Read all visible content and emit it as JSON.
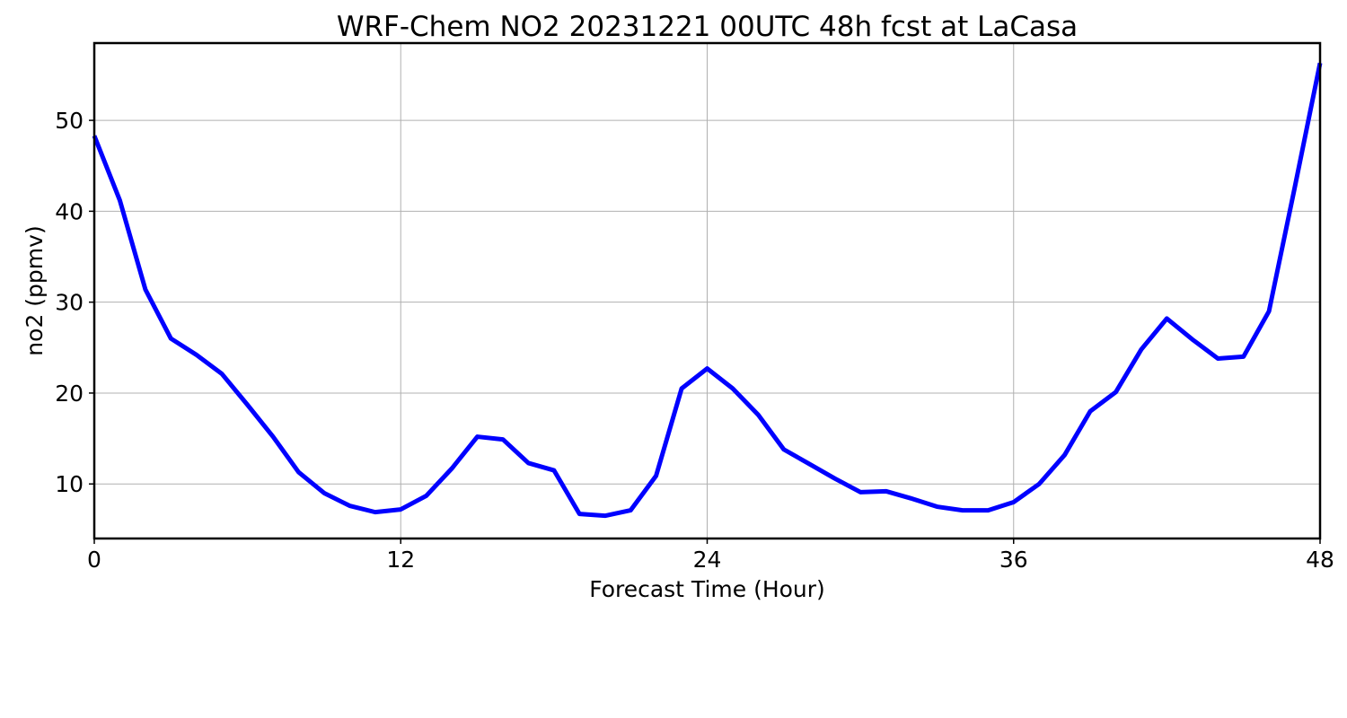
{
  "colors": {
    "line": "#0000ff",
    "grid": "#b0b0b0",
    "axes": "#000000",
    "background": "#ffffff"
  },
  "chart_data": {
    "type": "line",
    "title": "WRF-Chem NO2  20231221 00UTC 48h fcst at LaCasa",
    "xlabel": "Forecast Time (Hour)",
    "ylabel": "no2  (ppmv)",
    "xlim": [
      0,
      48
    ],
    "ylim": [
      4,
      58.5
    ],
    "xticks": [
      0,
      12,
      24,
      36,
      48
    ],
    "yticks": [
      10,
      20,
      30,
      40,
      50
    ],
    "grid": true,
    "series": [
      {
        "x": [
          0,
          1,
          2,
          3,
          4,
          5,
          6,
          7,
          8,
          9,
          10,
          11,
          12,
          13,
          14,
          15,
          16,
          17,
          18,
          19,
          20,
          21,
          22,
          23,
          24,
          25,
          26,
          27,
          28,
          29,
          30,
          31,
          32,
          33,
          34,
          35,
          36,
          37,
          38,
          39,
          40,
          41,
          42,
          43,
          44,
          45,
          46,
          47,
          48
        ],
        "values": [
          48.3,
          41.2,
          31.4,
          26.0,
          24.2,
          22.1,
          18.7,
          15.2,
          11.3,
          9.0,
          7.6,
          6.9,
          7.2,
          8.7,
          11.7,
          15.2,
          14.9,
          12.3,
          11.5,
          6.7,
          6.5,
          7.1,
          10.9,
          20.5,
          22.7,
          20.5,
          17.6,
          13.8,
          12.2,
          10.6,
          9.1,
          9.2,
          8.4,
          7.5,
          7.1,
          7.1,
          8.0,
          10.0,
          13.2,
          18.0,
          20.1,
          24.8,
          28.2,
          25.9,
          23.8,
          24.0,
          29.0,
          42.5,
          56.3
        ]
      }
    ]
  }
}
